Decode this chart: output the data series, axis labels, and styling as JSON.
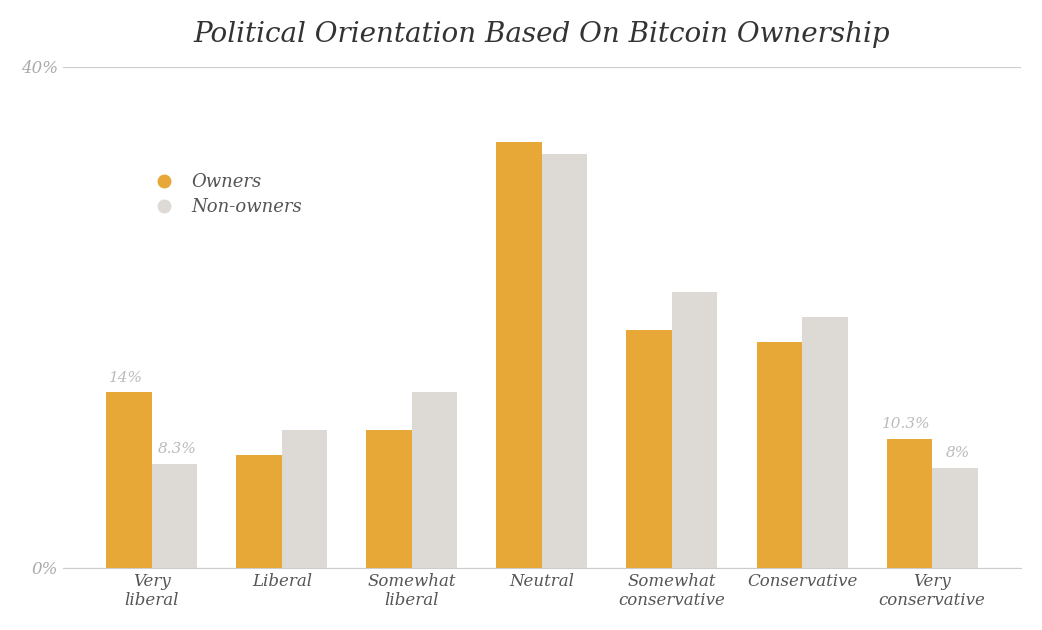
{
  "title": "Political Orientation Based On Bitcoin Ownership",
  "categories": [
    "Very\nliberal",
    "Liberal",
    "Somewhat\nliberal",
    "Neutral",
    "Somewhat\nconservative",
    "Conservative",
    "Very\nconservative"
  ],
  "owners": [
    14.0,
    9.0,
    11.0,
    34.0,
    19.0,
    18.0,
    10.3
  ],
  "non_owners": [
    8.3,
    11.0,
    14.0,
    33.0,
    22.0,
    20.0,
    8.0
  ],
  "owner_color": "#E8A838",
  "non_owner_color": "#DDDAD5",
  "owner_label": "Owners",
  "non_owner_label": "Non-owners",
  "ylim": [
    0,
    40
  ],
  "yticks": [
    0,
    40
  ],
  "ytick_labels": [
    "0%",
    "40%"
  ],
  "bar_width": 0.35,
  "background_color": "#FFFFFF",
  "title_fontsize": 20,
  "tick_fontsize": 12,
  "legend_fontsize": 13,
  "annotation_color": "#BBBBBB",
  "annot_vl_owner": {
    "text": "14%",
    "bar_idx": 0,
    "series": "owner"
  },
  "annot_vl_nonowner": {
    "text": "8.3%",
    "bar_idx": 0,
    "series": "non_owner"
  },
  "annot_vc_owner": {
    "text": "10.3%",
    "bar_idx": 6,
    "series": "owner"
  },
  "annot_vc_nonowner": {
    "text": "8%",
    "bar_idx": 6,
    "series": "non_owner"
  }
}
